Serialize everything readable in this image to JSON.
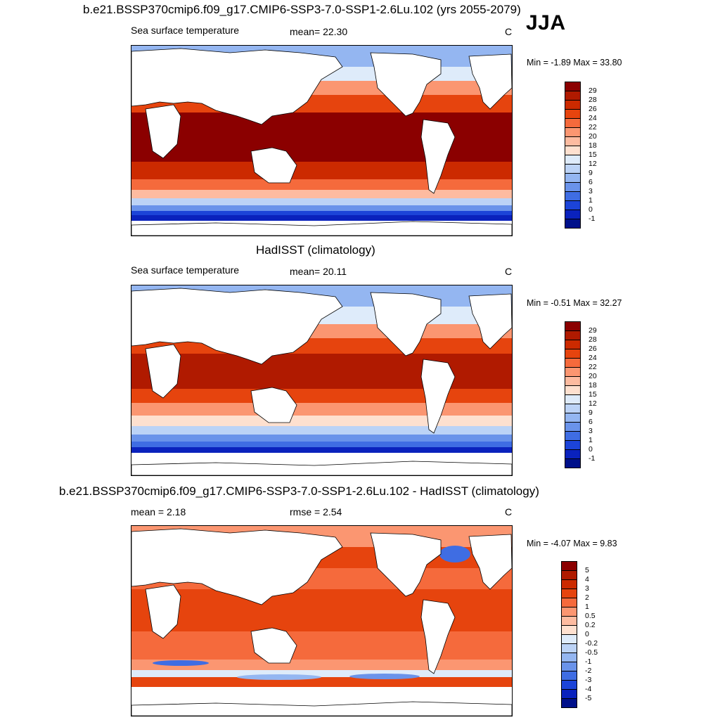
{
  "season": "JJA",
  "panels": [
    {
      "title": "b.e21.BSSP370cmip6.f09_g17.CMIP6-SSP3-7.0-SSP1-2.6Lu.102 (yrs 2055-2079)",
      "left_label": "Sea surface temperature",
      "mid_label": "mean=  22.30",
      "units": "C",
      "minmax": "Min =  -1.89 Max =  33.80",
      "levels": [
        "29",
        "28",
        "26",
        "24",
        "22",
        "20",
        "18",
        "15",
        "12",
        "9",
        "6",
        "3",
        "1",
        "0",
        "-1"
      ],
      "colors": [
        "#8b0000",
        "#b01a00",
        "#cc2a00",
        "#e6440e",
        "#f56a3c",
        "#fb9671",
        "#fdbba0",
        "#fee0cf",
        "#deebfa",
        "#bcd3f6",
        "#94b6f1",
        "#6a93ea",
        "#3f6de3",
        "#1c44d8",
        "#0a22bd",
        "#00108a"
      ]
    },
    {
      "title": "HadISST (climatology)",
      "left_label": "Sea surface temperature",
      "mid_label": "mean=  20.11",
      "units": "C",
      "minmax": "Min =  -0.51 Max =  32.27",
      "levels": [
        "29",
        "28",
        "26",
        "24",
        "22",
        "20",
        "18",
        "15",
        "12",
        "9",
        "6",
        "3",
        "1",
        "0",
        "-1"
      ],
      "colors": [
        "#8b0000",
        "#b01a00",
        "#cc2a00",
        "#e6440e",
        "#f56a3c",
        "#fb9671",
        "#fdbba0",
        "#fee0cf",
        "#deebfa",
        "#bcd3f6",
        "#94b6f1",
        "#6a93ea",
        "#3f6de3",
        "#1c44d8",
        "#0a22bd",
        "#00108a"
      ]
    },
    {
      "title": "b.e21.BSSP370cmip6.f09_g17.CMIP6-SSP3-7.0-SSP1-2.6Lu.102 - HadISST (climatology)",
      "left_label": "mean =   2.18",
      "mid_label": "rmse =   2.54",
      "units": "C",
      "minmax": "Min =  -4.07 Max =   9.83",
      "levels": [
        "5",
        "4",
        "3",
        "2",
        "1",
        "0.5",
        "0.2",
        "0",
        "-0.2",
        "-0.5",
        "-1",
        "-2",
        "-3",
        "-4",
        "-5"
      ],
      "colors": [
        "#8b0000",
        "#b01a00",
        "#cc2a00",
        "#e6440e",
        "#f56a3c",
        "#fb9671",
        "#fdbba0",
        "#fee0cf",
        "#deebfa",
        "#bcd3f6",
        "#94b6f1",
        "#6a93ea",
        "#3f6de3",
        "#1c44d8",
        "#0a22bd",
        "#00108a"
      ]
    }
  ]
}
